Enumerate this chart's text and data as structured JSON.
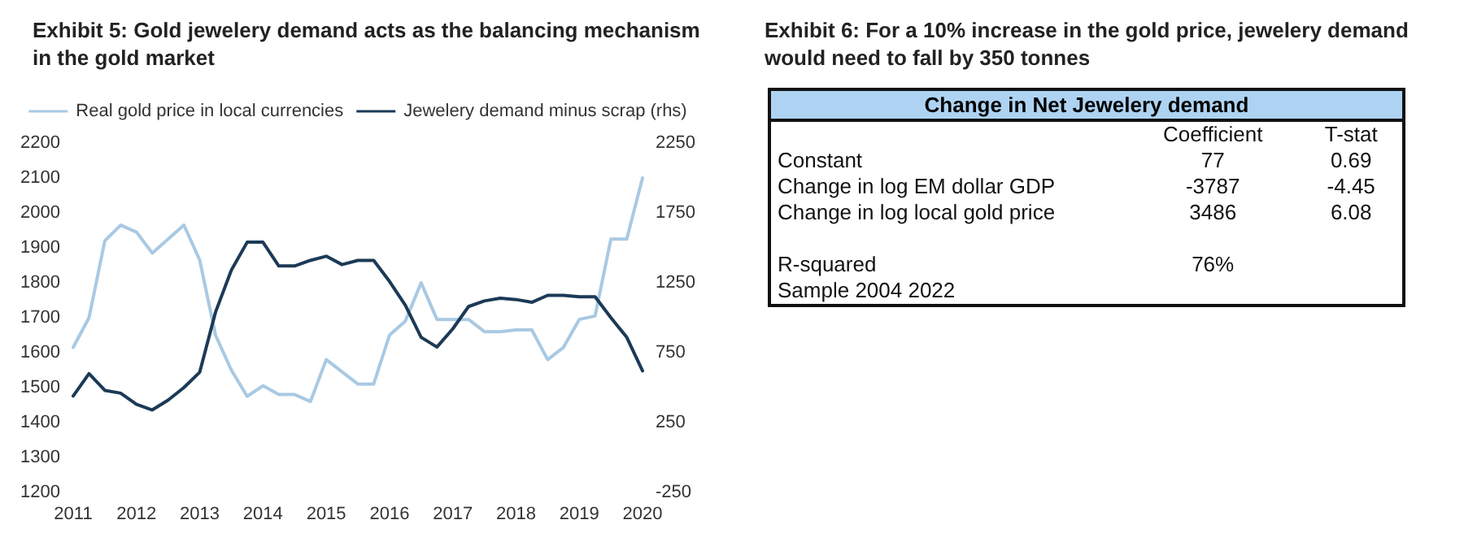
{
  "chart_data": [
    {
      "type": "line",
      "title": "Exhibit 5: Gold jewelery demand acts as the balancing mechanism in the gold market",
      "x": [
        2011,
        2011.25,
        2011.5,
        2011.75,
        2012,
        2012.25,
        2012.5,
        2012.75,
        2013,
        2013.25,
        2013.5,
        2013.75,
        2014,
        2014.25,
        2014.5,
        2014.75,
        2015,
        2015.25,
        2015.5,
        2015.75,
        2016,
        2016.25,
        2016.5,
        2016.75,
        2017,
        2017.25,
        2017.5,
        2017.75,
        2018,
        2018.25,
        2018.5,
        2018.75,
        2019,
        2019.25,
        2019.5,
        2019.75,
        2020
      ],
      "series": [
        {
          "name": "Real gold price in local currencies",
          "color": "#a9c9e3",
          "values": [
            1615,
            1700,
            1920,
            1965,
            1945,
            1885,
            1925,
            1965,
            1865,
            1650,
            1550,
            1475,
            1505,
            1480,
            1480,
            1460,
            1580,
            1545,
            1510,
            1510,
            1650,
            1690,
            1800,
            1695,
            1695,
            1695,
            1660,
            1660,
            1665,
            1665,
            1580,
            1615,
            1695,
            1705,
            1925,
            1925,
            2100
          ]
        },
        {
          "name": "Jewelery demand minus scrap (rhs)",
          "color": "#1c3a57",
          "axis": "y2",
          "values": [
            440,
            600,
            480,
            460,
            380,
            340,
            410,
            500,
            610,
            1040,
            1340,
            1540,
            1540,
            1370,
            1370,
            1410,
            1440,
            1380,
            1410,
            1410,
            1260,
            1090,
            860,
            790,
            920,
            1080,
            1120,
            1140,
            1130,
            1110,
            1160,
            1160,
            1150,
            1150,
            1000,
            860,
            620
          ]
        }
      ],
      "xlim": [
        2011,
        2020
      ],
      "xticks": [
        2011,
        2012,
        2013,
        2014,
        2015,
        2016,
        2017,
        2018,
        2019,
        2020
      ],
      "ylim": [
        1200,
        2200
      ],
      "yticks": [
        1200,
        1300,
        1400,
        1500,
        1600,
        1700,
        1800,
        1900,
        2000,
        2100,
        2200
      ],
      "y2lim": [
        -250,
        2250
      ],
      "y2ticks": [
        -250,
        250,
        750,
        1250,
        1750,
        2250
      ],
      "legend": "top",
      "grid": false,
      "marker": "none",
      "line_style": "solid"
    },
    {
      "type": "other",
      "title": "Exhibit 6: For a 10% increase in the gold price, jewelery demand would need to fall by 350 tonnes",
      "subtitle": "Change in Net Jewelery demand",
      "categories": [
        "Constant",
        "Change in log EM dollar GDP",
        "Change in log local gold price",
        null,
        "R-squared"
      ],
      "series": [
        {
          "name": "Coefficient",
          "values": [
            77,
            -3787,
            3486,
            null,
            76
          ],
          "value_labels": [
            "77",
            "-3787",
            "3486",
            null,
            "76%"
          ]
        },
        {
          "name": "T-stat",
          "values": [
            0.69,
            -4.45,
            6.08,
            null,
            null
          ]
        }
      ],
      "data_labels": true,
      "annotations": [
        "Sample 2004 2022"
      ]
    }
  ]
}
